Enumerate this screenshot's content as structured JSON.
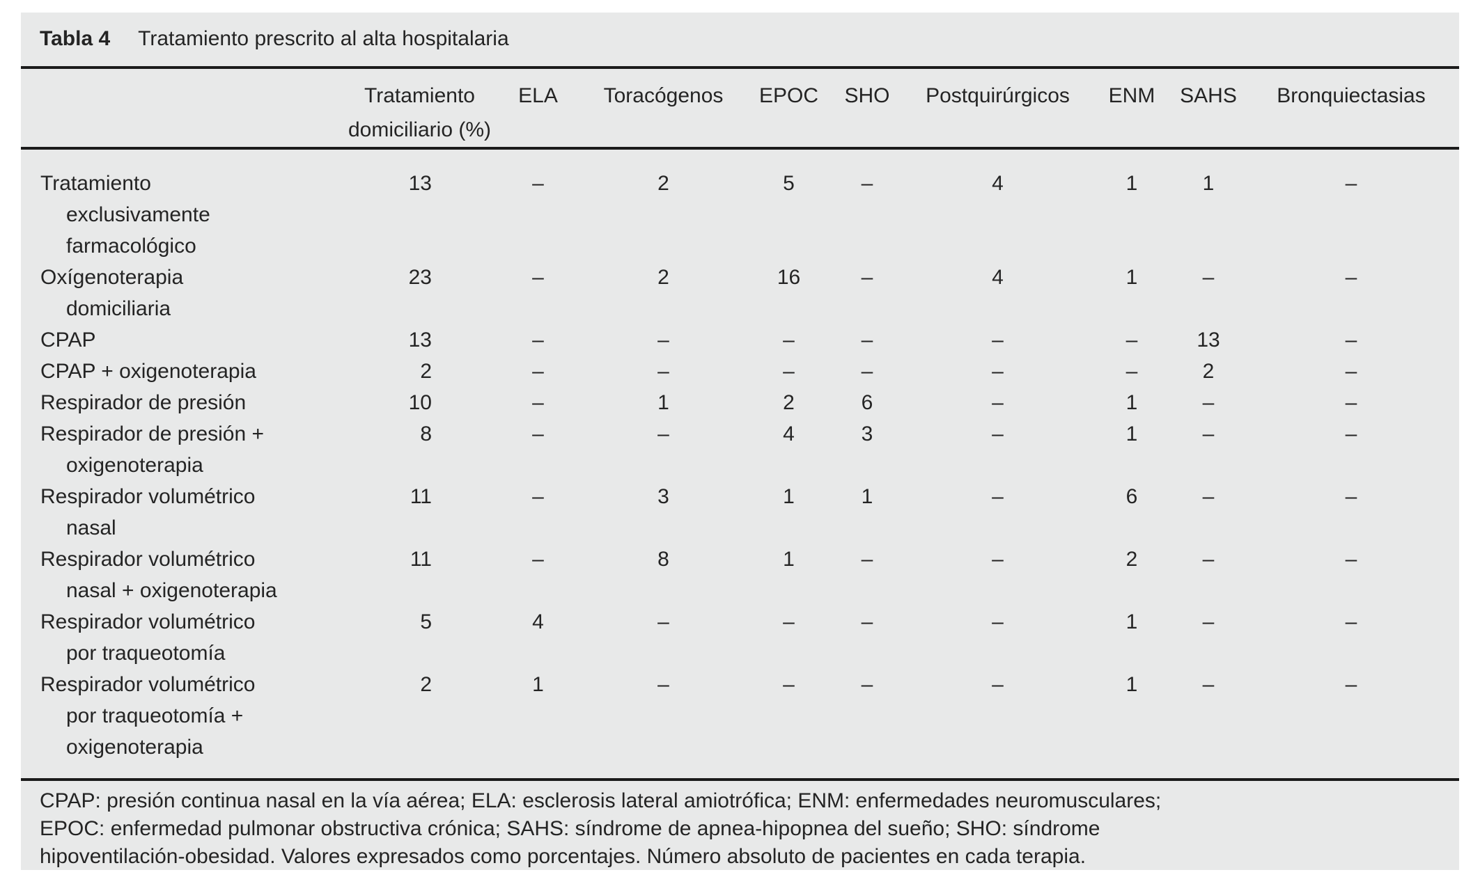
{
  "table": {
    "caption_label": "Tabla 4",
    "caption_title": "Tratamiento prescrito al alta hospitalaria",
    "columns": [
      {
        "id": "row-header",
        "header_lines": []
      },
      {
        "id": "tratamiento-domiciliario",
        "header_lines": [
          "Tratamiento",
          "domiciliario (%)"
        ]
      },
      {
        "id": "ela",
        "header_lines": [
          "ELA"
        ]
      },
      {
        "id": "toracogenos",
        "header_lines": [
          "Toracógenos"
        ]
      },
      {
        "id": "epoc",
        "header_lines": [
          "EPOC"
        ]
      },
      {
        "id": "sho",
        "header_lines": [
          "SHO"
        ]
      },
      {
        "id": "postquirurgicos",
        "header_lines": [
          "Postquirúrgicos"
        ]
      },
      {
        "id": "enm",
        "header_lines": [
          "ENM"
        ]
      },
      {
        "id": "sahs",
        "header_lines": [
          "SAHS"
        ]
      },
      {
        "id": "bronquiectasias",
        "header_lines": [
          "Bronquiectasias"
        ]
      }
    ],
    "rows": [
      {
        "label": "Tratamiento exclusivamente farmacológico",
        "label_lines": [
          "Tratamiento",
          "exclusivamente",
          "farmacológico"
        ],
        "values": [
          "13",
          "–",
          "2",
          "5",
          "–",
          "4",
          "1",
          "1",
          "–"
        ]
      },
      {
        "label": "Oxígenoterapia domiciliaria",
        "label_lines": [
          "Oxígenoterapia",
          "domiciliaria"
        ],
        "values": [
          "23",
          "–",
          "2",
          "16",
          "–",
          "4",
          "1",
          "–",
          "–"
        ]
      },
      {
        "label": "CPAP",
        "label_lines": [
          "CPAP"
        ],
        "values": [
          "13",
          "–",
          "–",
          "–",
          "–",
          "–",
          "–",
          "13",
          "–"
        ]
      },
      {
        "label": "CPAP + oxigenoterapia",
        "label_lines": [
          "CPAP + oxigenoterapia"
        ],
        "values": [
          "2",
          "–",
          "–",
          "–",
          "–",
          "–",
          "–",
          "2",
          "–"
        ]
      },
      {
        "label": "Respirador de presión",
        "label_lines": [
          "Respirador de presión"
        ],
        "values": [
          "10",
          "–",
          "1",
          "2",
          "6",
          "–",
          "1",
          "–",
          "–"
        ]
      },
      {
        "label": "Respirador de presión + oxigenoterapia",
        "label_lines": [
          "Respirador de presión +",
          "oxigenoterapia"
        ],
        "values": [
          "8",
          "–",
          "–",
          "4",
          "3",
          "–",
          "1",
          "–",
          "–"
        ]
      },
      {
        "label": "Respirador volumétrico nasal",
        "label_lines": [
          "Respirador volumétrico",
          "nasal"
        ],
        "values": [
          "11",
          "–",
          "3",
          "1",
          "1",
          "–",
          "6",
          "–",
          "–"
        ]
      },
      {
        "label": "Respirador volumétrico nasal + oxigenoterapia",
        "label_lines": [
          "Respirador volumétrico",
          "nasal + oxigenoterapia"
        ],
        "values": [
          "11",
          "–",
          "8",
          "1",
          "–",
          "–",
          "2",
          "–",
          "–"
        ]
      },
      {
        "label": "Respirador volumétrico por traqueotomía",
        "label_lines": [
          "Respirador volumétrico",
          "por traqueotomía"
        ],
        "values": [
          "5",
          "4",
          "–",
          "–",
          "–",
          "–",
          "1",
          "–",
          "–"
        ]
      },
      {
        "label": "Respirador volumétrico por traqueotomía + oxigenoterapia",
        "label_lines": [
          "Respirador volumétrico",
          "por traqueotomía +",
          "oxigenoterapia"
        ],
        "values": [
          "2",
          "1",
          "–",
          "–",
          "–",
          "–",
          "1",
          "–",
          "–"
        ]
      }
    ],
    "footnote_lines": [
      "CPAP: presión continua nasal en la vía aérea; ELA: esclerosis lateral amiotrófica; ENM: enfermedades neuromusculares;",
      "EPOC: enfermedad pulmonar obstructiva crónica; SAHS: síndrome de apnea-hipopnea del sueño; SHO: síndrome",
      "hipoventilación-obesidad. Valores expresados como porcentajes. Número absoluto de pacientes en cada terapia."
    ]
  },
  "colors": {
    "panel_bg": "#e8e9e9",
    "rule": "#1b1b1b",
    "text": "#242424"
  }
}
